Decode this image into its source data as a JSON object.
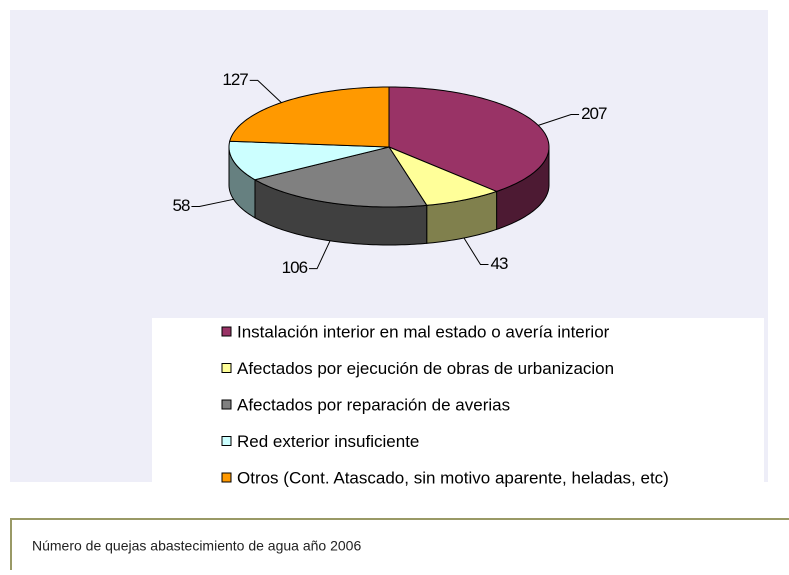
{
  "chart_data": {
    "type": "pie3d",
    "categories": [
      "Instalación interior en mal estado o avería interior",
      "Afectados por ejecución de obras de urbanizacion",
      "Afectados por reparación de averias",
      "Red exterior insuficiente",
      "Otros (Cont. Atascado, sin motivo aparente, heladas, etc)"
    ],
    "values": [
      207,
      43,
      106,
      58,
      127
    ],
    "colors": [
      "#993366",
      "#ffff99",
      "#808080",
      "#ccffff",
      "#ff9900"
    ]
  },
  "caption": "Número de quejas abastecimiento de agua año 2006"
}
